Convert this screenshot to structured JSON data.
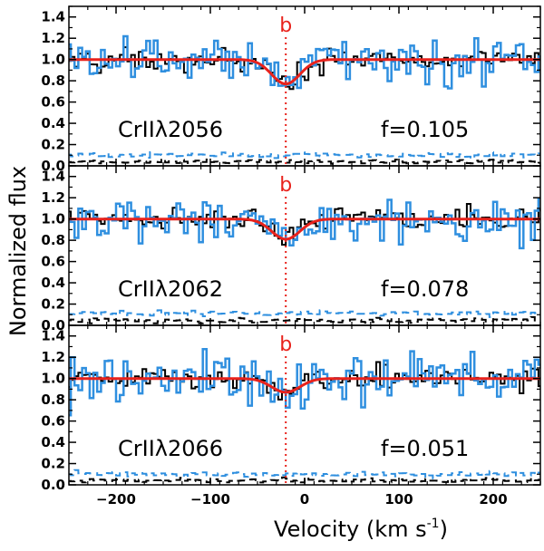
{
  "colors": {
    "black_spectrum": "#000000",
    "blue_spectrum": "#2f8fdf",
    "model": "#e8221c",
    "marker": "#e8221c",
    "axis": "#000000"
  },
  "chart_data": {
    "type": "line",
    "xlabel": "Velocity (km s",
    "xlabel_sup": "-1",
    "xlabel_close": ")",
    "ylabel": "Normalized flux",
    "xlim": [
      -250,
      250
    ],
    "ylim": [
      0.0,
      1.5
    ],
    "x_ticks": [
      -200,
      -100,
      0,
      100,
      200
    ],
    "x_tick_labels": [
      "−200",
      "−100",
      "0",
      "100",
      "200"
    ],
    "y_ticks": [
      0.0,
      0.2,
      0.4,
      0.6,
      0.8,
      1.0,
      1.2,
      1.4
    ],
    "y_tick_labels": [
      "0.0",
      "0.2",
      "0.4",
      "0.6",
      "0.8",
      "1.0",
      "1.2",
      "1.4"
    ],
    "component": {
      "label": "b",
      "velocity": -20
    },
    "panels": [
      {
        "ion": "CrIIλ2056",
        "f_label": "f=0.105",
        "seed": 11,
        "model_depth": 0.23,
        "model_center": -20,
        "model_sigma": 15,
        "error_level": 0.1,
        "error_level_black": 0.04
      },
      {
        "ion": "CrIIλ2062",
        "f_label": "f=0.078",
        "seed": 29,
        "model_depth": 0.19,
        "model_center": -20,
        "model_sigma": 15,
        "error_level": 0.11,
        "error_level_black": 0.045
      },
      {
        "ion": "CrIIλ2066",
        "f_label": "f=0.051",
        "seed": 47,
        "model_depth": 0.13,
        "model_center": -20,
        "model_sigma": 15,
        "error_level": 0.1,
        "error_level_black": 0.04
      }
    ],
    "series": [
      {
        "name": "black spectrum",
        "noise": 0.05
      },
      {
        "name": "blue spectrum",
        "noise": 0.11
      },
      {
        "name": "Voigt profile fit"
      }
    ]
  }
}
